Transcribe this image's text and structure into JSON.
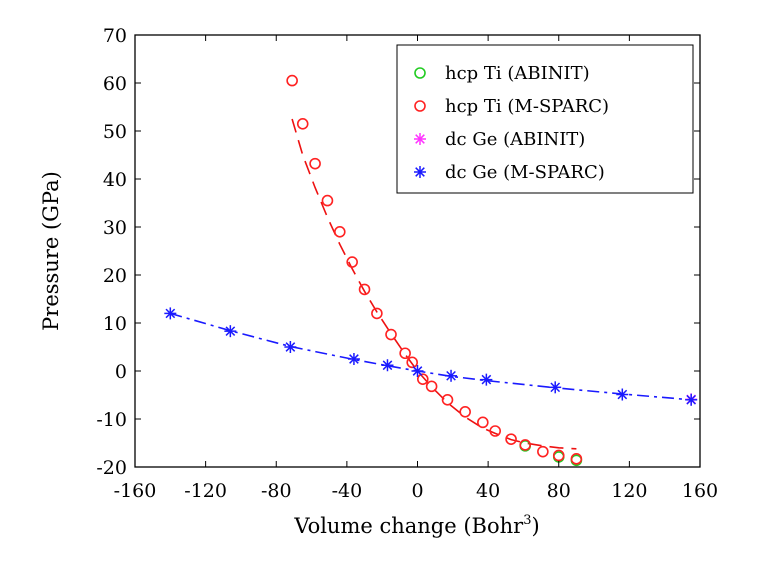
{
  "chart_data": {
    "type": "scatter",
    "xlabel": "Volume change (Bohr",
    "xlabel_sup": "3",
    "xlabel_suffix": ")",
    "ylabel": "Pressure (GPa)",
    "xlim": [
      -160,
      160
    ],
    "ylim": [
      -20,
      70
    ],
    "xticks": [
      -160,
      -120,
      -80,
      -40,
      0,
      40,
      80,
      120,
      160
    ],
    "yticks": [
      -20,
      -10,
      0,
      10,
      20,
      30,
      40,
      50,
      60,
      70
    ],
    "grid": false,
    "legend_position": "top-right",
    "series": [
      {
        "name": "hcp Ti (ABINIT)",
        "marker": "circle",
        "color": "#22cc22",
        "points": [
          [
            61,
            -15.6
          ],
          [
            80,
            -17.9
          ],
          [
            90,
            -18.6
          ]
        ]
      },
      {
        "name": "hcp Ti (M-SPARC)",
        "marker": "circle",
        "color": "#ff2222",
        "points": [
          [
            -71,
            60.5
          ],
          [
            -65,
            51.5
          ],
          [
            -58,
            43.2
          ],
          [
            -51,
            35.5
          ],
          [
            -44,
            29
          ],
          [
            -37,
            22.7
          ],
          [
            -30,
            17
          ],
          [
            -23,
            12
          ],
          [
            -15,
            7.6
          ],
          [
            -7,
            3.7
          ],
          [
            -3,
            1.8
          ],
          [
            3,
            -1.7
          ],
          [
            8,
            -3.2
          ],
          [
            17,
            -6
          ],
          [
            27,
            -8.5
          ],
          [
            37,
            -10.7
          ],
          [
            44,
            -12.5
          ],
          [
            53,
            -14.2
          ],
          [
            61,
            -15.4
          ],
          [
            71,
            -16.8
          ],
          [
            80,
            -17.6
          ],
          [
            90,
            -18.3
          ]
        ]
      },
      {
        "name": "dc Ge (ABINIT)",
        "marker": "asterisk",
        "color": "#ff33ff",
        "points": [
          [
            155,
            -5.9
          ]
        ]
      },
      {
        "name": "dc Ge (M-SPARC)",
        "marker": "asterisk",
        "color": "#1a1aff",
        "points": [
          [
            -140,
            12
          ],
          [
            -106,
            8.3
          ],
          [
            -72,
            5
          ],
          [
            -36,
            2.5
          ],
          [
            -17,
            1.2
          ],
          [
            0,
            0
          ],
          [
            19,
            -1
          ],
          [
            39,
            -1.8
          ],
          [
            78,
            -3.4
          ],
          [
            116,
            -4.9
          ],
          [
            155,
            -6
          ]
        ]
      }
    ],
    "fit_curves": [
      {
        "of": "hcp Ti (M-SPARC)",
        "style": "dashed",
        "color": "#ee1111",
        "points": [
          [
            -71,
            52.5
          ],
          [
            -65,
            45
          ],
          [
            -58,
            38.2
          ],
          [
            -51,
            32
          ],
          [
            -44,
            26.4
          ],
          [
            -37,
            21.3
          ],
          [
            -30,
            16.6
          ],
          [
            -23,
            12.3
          ],
          [
            -15,
            7.8
          ],
          [
            -7,
            3.5
          ],
          [
            0,
            0
          ],
          [
            8,
            -3.3
          ],
          [
            17,
            -6.6
          ],
          [
            27,
            -9.6
          ],
          [
            37,
            -11.9
          ],
          [
            44,
            -13
          ],
          [
            53,
            -14.3
          ],
          [
            61,
            -15
          ],
          [
            71,
            -15.6
          ],
          [
            80,
            -16
          ],
          [
            90,
            -16.2
          ]
        ]
      },
      {
        "of": "dc Ge (M-SPARC)",
        "style": "dash-dot",
        "color": "#1a1aff",
        "points": [
          [
            -140,
            12
          ],
          [
            -106,
            8.4
          ],
          [
            -72,
            5.1
          ],
          [
            -36,
            2.4
          ],
          [
            -17,
            1.1
          ],
          [
            0,
            0
          ],
          [
            19,
            -1.1
          ],
          [
            39,
            -2
          ],
          [
            78,
            -3.5
          ],
          [
            116,
            -4.8
          ],
          [
            155,
            -6
          ]
        ]
      }
    ]
  }
}
